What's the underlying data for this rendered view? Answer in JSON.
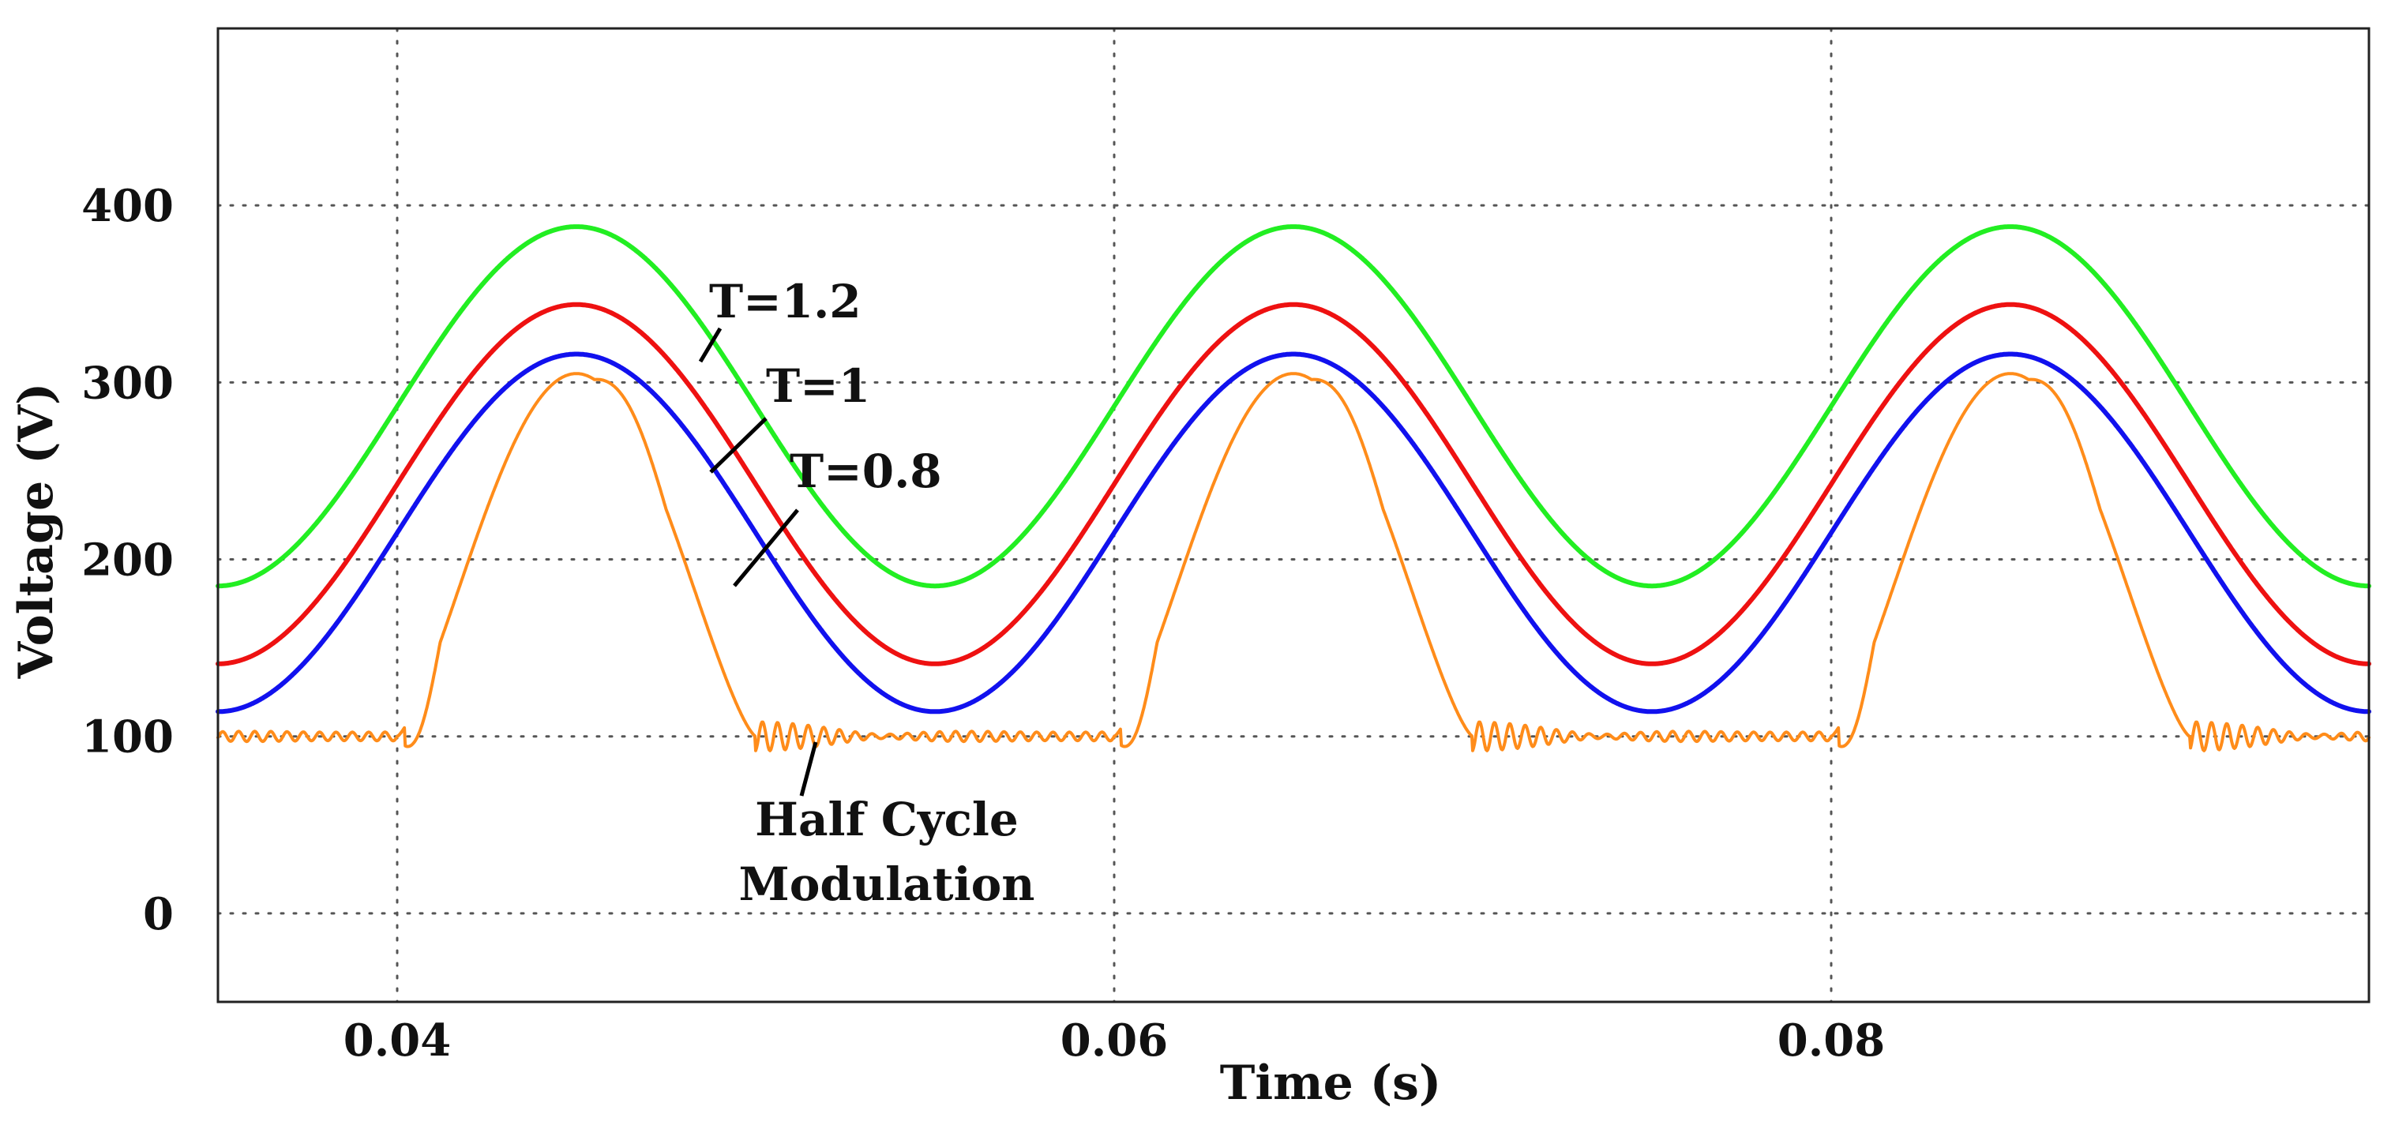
{
  "chart_data": {
    "type": "line",
    "title": "",
    "xlabel": "Time (s)",
    "ylabel": "Voltage (V)",
    "xlim": [
      0.035,
      0.095
    ],
    "ylim": [
      -50,
      500
    ],
    "xticks": [
      0.04,
      0.06,
      0.08
    ],
    "xtick_labels": [
      "0.04",
      "0.06",
      "0.08"
    ],
    "yticks": [
      0,
      100,
      200,
      300,
      400
    ],
    "ytick_labels": [
      "0",
      "100",
      "200",
      "300",
      "400"
    ],
    "grid": true,
    "period_s": 0.02,
    "series": [
      {
        "name": "T=1.2",
        "color": "#22ee22",
        "shape": "raised-cosine",
        "min_V": 185,
        "max_V": 388,
        "peak_times_s": [
          0.045,
          0.065,
          0.085
        ]
      },
      {
        "name": "T=1",
        "color": "#ee1111",
        "shape": "raised-cosine",
        "min_V": 141,
        "max_V": 344,
        "peak_times_s": [
          0.045,
          0.065,
          0.085
        ]
      },
      {
        "name": "T=0.8",
        "color": "#1111ee",
        "shape": "raised-cosine",
        "min_V": 114,
        "max_V": 316,
        "peak_times_s": [
          0.045,
          0.065,
          0.085
        ]
      },
      {
        "name": "Half Cycle Modulation",
        "color": "#ff8c1a",
        "shape": "half-cycle-pulse",
        "base_V": 100,
        "peak_V": 305,
        "pulse_start_s": [
          0.04,
          0.06,
          0.08
        ],
        "pulse_end_s": [
          0.05,
          0.07,
          0.09
        ],
        "ripple_V": 5
      }
    ],
    "annotations": [
      {
        "text": "T=1.2",
        "series": "T=1.2"
      },
      {
        "text": "T=1",
        "series": "T=1"
      },
      {
        "text": "T=0.8",
        "series": "T=0.8"
      },
      {
        "text_lines": [
          "Half Cycle",
          "Modulation"
        ],
        "series": "Half Cycle Modulation"
      }
    ]
  }
}
